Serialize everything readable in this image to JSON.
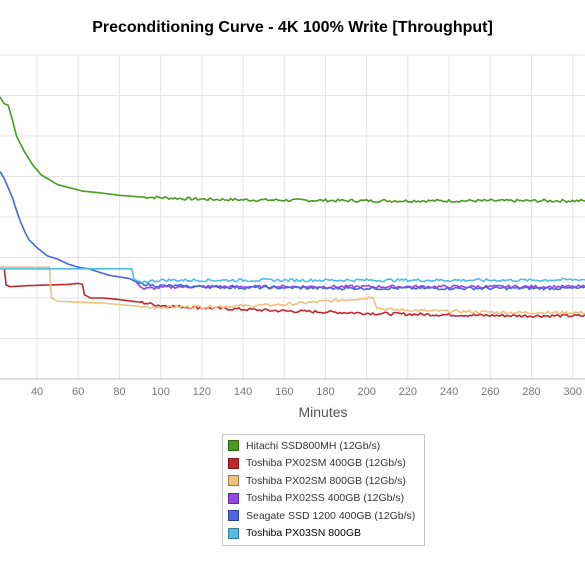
{
  "chart_data": {
    "type": "line",
    "title": "Preconditioning Curve - 4K 100% Write [Throughput]",
    "xlabel": "Minutes",
    "ylabel": "",
    "x_ticks": [
      40,
      60,
      80,
      100,
      120,
      140,
      160,
      180,
      200,
      220,
      240,
      260,
      280,
      300
    ],
    "xlim": [
      22,
      306
    ],
    "ylim": [
      0,
      100
    ],
    "grid": true,
    "legend_position": "bottom-center",
    "series": [
      {
        "name": "Hitachi SSD800MH (12Gb/s)",
        "color": "#4a9a1e",
        "points": [
          [
            22,
            87
          ],
          [
            24,
            85
          ],
          [
            26,
            84.5
          ],
          [
            28,
            80
          ],
          [
            30,
            75
          ],
          [
            34,
            70
          ],
          [
            38,
            66
          ],
          [
            42,
            63
          ],
          [
            46,
            61.5
          ],
          [
            50,
            60
          ],
          [
            56,
            59
          ],
          [
            62,
            58
          ],
          [
            70,
            57.5
          ],
          [
            80,
            56.7
          ],
          [
            90,
            56.2
          ],
          [
            100,
            56
          ],
          [
            110,
            55.7
          ],
          [
            120,
            55.5
          ],
          [
            140,
            55.3
          ],
          [
            160,
            55.2
          ],
          [
            180,
            55.1
          ],
          [
            200,
            55
          ],
          [
            220,
            55
          ],
          [
            240,
            55
          ],
          [
            260,
            55
          ],
          [
            280,
            55
          ],
          [
            306,
            55
          ]
        ]
      },
      {
        "name": "Toshiba PX02SM 400GB (12Gb/s)",
        "color": "#c0272d",
        "points": [
          [
            22,
            34.5
          ],
          [
            24,
            34.5
          ],
          [
            25,
            29
          ],
          [
            27,
            28.5
          ],
          [
            35,
            28.8
          ],
          [
            45,
            29
          ],
          [
            55,
            29.2
          ],
          [
            60,
            29.5
          ],
          [
            62,
            29.2
          ],
          [
            63,
            26
          ],
          [
            66,
            25
          ],
          [
            72,
            25
          ],
          [
            80,
            24.5
          ],
          [
            90,
            23.7
          ],
          [
            100,
            22.7
          ],
          [
            110,
            22.3
          ],
          [
            120,
            22
          ],
          [
            140,
            21.5
          ],
          [
            160,
            21
          ],
          [
            180,
            20.7
          ],
          [
            200,
            20.3
          ],
          [
            220,
            20
          ],
          [
            240,
            19.8
          ],
          [
            260,
            19.6
          ],
          [
            280,
            19.5
          ],
          [
            306,
            19.5
          ]
        ]
      },
      {
        "name": "Toshiba PX02SM 800GB (12Gb/s)",
        "color": "#f0c080",
        "points": [
          [
            22,
            34.5
          ],
          [
            40,
            34.5
          ],
          [
            46,
            34.5
          ],
          [
            47,
            25
          ],
          [
            50,
            24
          ],
          [
            60,
            23.7
          ],
          [
            70,
            23.5
          ],
          [
            80,
            23
          ],
          [
            90,
            22.4
          ],
          [
            95,
            22
          ],
          [
            100,
            22.2
          ],
          [
            120,
            22.3
          ],
          [
            140,
            22.5
          ],
          [
            160,
            23
          ],
          [
            180,
            24
          ],
          [
            200,
            25
          ],
          [
            203,
            25.5
          ],
          [
            205,
            22
          ],
          [
            210,
            21.5
          ],
          [
            230,
            21
          ],
          [
            250,
            20.8
          ],
          [
            270,
            20.5
          ],
          [
            280,
            20.5
          ],
          [
            306,
            20.5
          ]
        ]
      },
      {
        "name": "Toshiba PX02SS 400GB (12Gb/s)",
        "color": "#9646e2",
        "points": [
          [
            88,
            30
          ],
          [
            90,
            28.5
          ],
          [
            92,
            27.8
          ],
          [
            95,
            28
          ],
          [
            100,
            28.2
          ],
          [
            110,
            28.5
          ],
          [
            120,
            28.5
          ],
          [
            140,
            28.5
          ],
          [
            160,
            28.5
          ],
          [
            180,
            28.5
          ],
          [
            200,
            28.5
          ],
          [
            220,
            28.5
          ],
          [
            240,
            28.5
          ],
          [
            260,
            28.5
          ],
          [
            280,
            28.5
          ],
          [
            306,
            28.5
          ]
        ]
      },
      {
        "name": "Seagate SSD 1200 400GB (12Gb/s)",
        "color": "#4a66e0",
        "points": [
          [
            22,
            64
          ],
          [
            24,
            62
          ],
          [
            26,
            59
          ],
          [
            28,
            56
          ],
          [
            30,
            52
          ],
          [
            32,
            48.5
          ],
          [
            34,
            45.5
          ],
          [
            36,
            43
          ],
          [
            40,
            40.5
          ],
          [
            45,
            38
          ],
          [
            50,
            37
          ],
          [
            55,
            35.5
          ],
          [
            60,
            34.5
          ],
          [
            65,
            34
          ],
          [
            70,
            33
          ],
          [
            75,
            32
          ],
          [
            80,
            31.5
          ],
          [
            85,
            31
          ],
          [
            88,
            30
          ],
          [
            90,
            29.5
          ],
          [
            95,
            29
          ],
          [
            100,
            28.8
          ],
          [
            120,
            28.5
          ],
          [
            140,
            28.2
          ],
          [
            160,
            28.2
          ],
          [
            180,
            28
          ],
          [
            200,
            28
          ],
          [
            220,
            28
          ],
          [
            240,
            28
          ],
          [
            260,
            28
          ],
          [
            280,
            28
          ],
          [
            306,
            28
          ]
        ]
      },
      {
        "name": "Toshiba PX03SN 800GB",
        "color": "#4fbde8",
        "points": [
          [
            22,
            34
          ],
          [
            40,
            34
          ],
          [
            60,
            34
          ],
          [
            80,
            34
          ],
          [
            86,
            34
          ],
          [
            87,
            31
          ],
          [
            88,
            30.5
          ],
          [
            90,
            30
          ],
          [
            95,
            30.2
          ],
          [
            100,
            30.5
          ],
          [
            120,
            30.5
          ],
          [
            140,
            30.5
          ],
          [
            160,
            30.5
          ],
          [
            180,
            30.5
          ],
          [
            200,
            30.5
          ],
          [
            220,
            30.5
          ],
          [
            240,
            30.5
          ],
          [
            260,
            30.5
          ],
          [
            280,
            30.5
          ],
          [
            306,
            30.7
          ]
        ]
      }
    ]
  }
}
